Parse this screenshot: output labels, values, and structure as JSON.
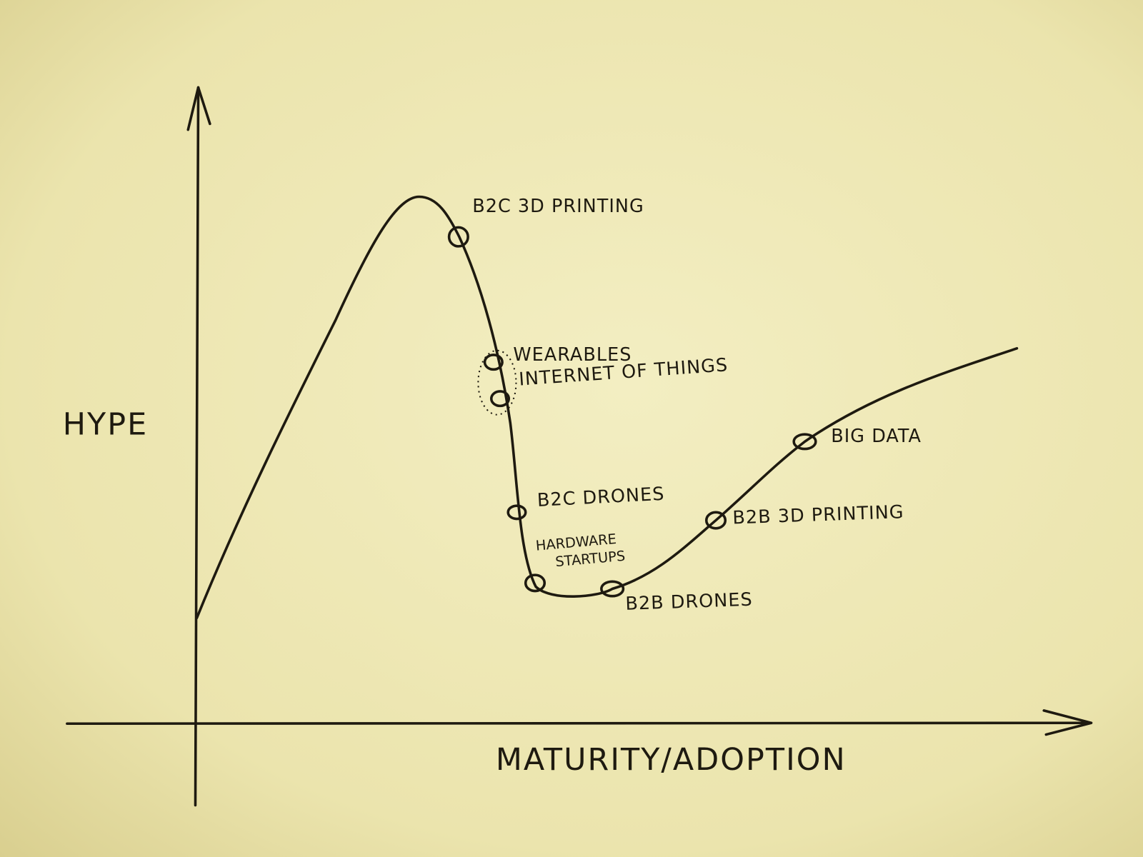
{
  "axes": {
    "y_label": "HYPE",
    "x_label": "MATURITY/ADOPTION"
  },
  "nodes": [
    {
      "label": "B2C 3D PRINTING"
    },
    {
      "label": "WEARABLES"
    },
    {
      "label": "INTERNET OF THINGS"
    },
    {
      "label": "B2C DRONES"
    },
    {
      "label": [
        "HARDWARE",
        "STARTUPS"
      ]
    },
    {
      "label": "B2B DRONES"
    },
    {
      "label": "B2B 3D PRINTING"
    },
    {
      "label": "BIG DATA"
    }
  ]
}
